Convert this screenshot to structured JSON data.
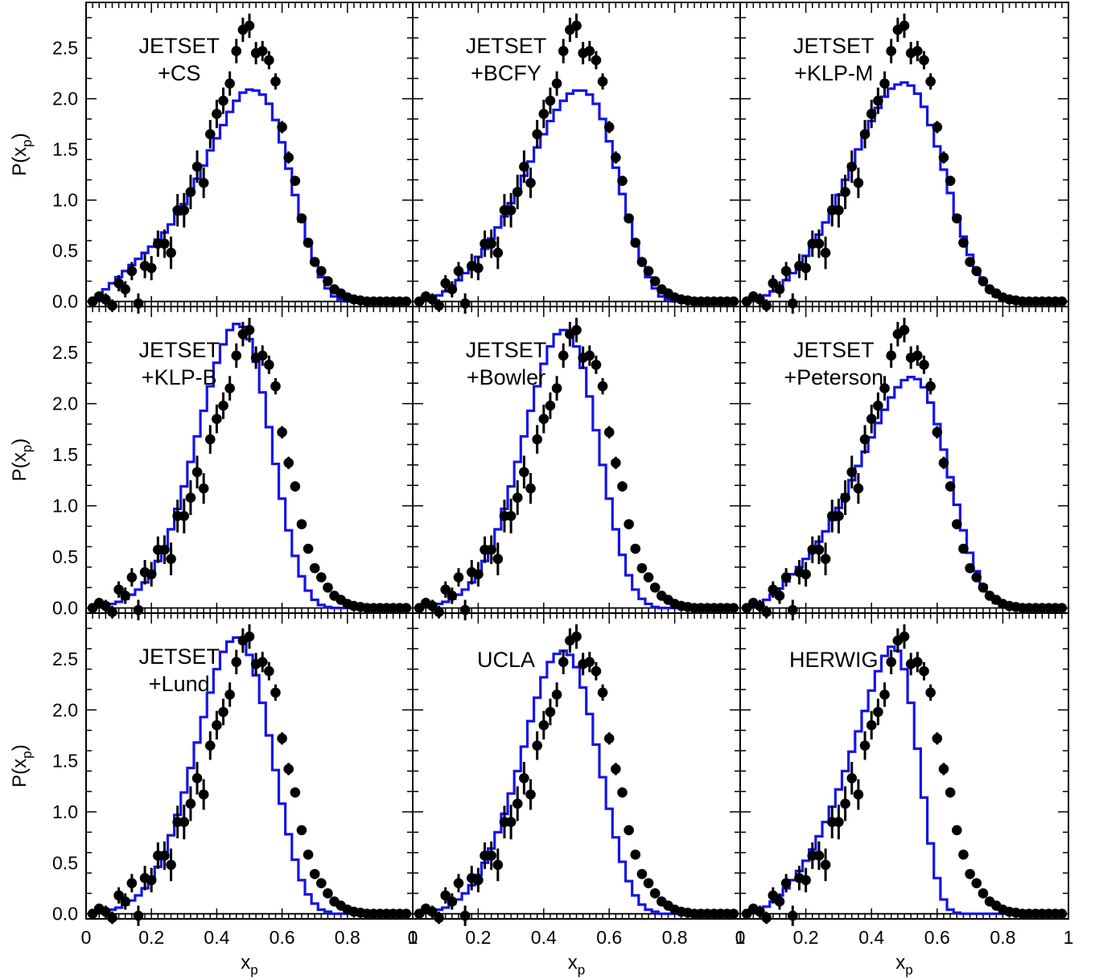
{
  "chart_data": {
    "type": "scatter",
    "layout": "3x3 grid of panels sharing axes",
    "xlabel": "x",
    "xlabel_subscript": "p",
    "ylabel": "P(x",
    "ylabel_subscript": "p",
    "ylabel_close": ")",
    "xlim": [
      0,
      1
    ],
    "ylim": [
      -0.05,
      2.95
    ],
    "xticks": [
      "0",
      "0.2",
      "0.4",
      "0.6",
      "0.8",
      "1"
    ],
    "yticks": [
      "0.0",
      "0.5",
      "1.0",
      "1.5",
      "2.0",
      "2.5"
    ],
    "colors": {
      "data_points": "#000000",
      "model_histogram": "#1414e6"
    },
    "data_points": {
      "x": [
        0.02,
        0.04,
        0.06,
        0.08,
        0.1,
        0.12,
        0.14,
        0.16,
        0.18,
        0.2,
        0.22,
        0.24,
        0.26,
        0.28,
        0.3,
        0.32,
        0.34,
        0.36,
        0.38,
        0.4,
        0.42,
        0.44,
        0.46,
        0.48,
        0.5,
        0.52,
        0.54,
        0.56,
        0.58,
        0.6,
        0.62,
        0.64,
        0.66,
        0.68,
        0.7,
        0.72,
        0.74,
        0.76,
        0.78,
        0.8,
        0.82,
        0.84,
        0.86,
        0.88,
        0.9,
        0.92,
        0.94,
        0.96,
        0.98
      ],
      "y": [
        0.0,
        0.05,
        0.02,
        -0.04,
        0.18,
        0.12,
        0.3,
        -0.02,
        0.35,
        0.33,
        0.57,
        0.57,
        0.48,
        0.9,
        0.9,
        1.08,
        1.33,
        1.17,
        1.65,
        1.85,
        1.98,
        2.15,
        2.47,
        2.68,
        2.72,
        2.45,
        2.47,
        2.38,
        2.17,
        1.72,
        1.42,
        1.19,
        0.82,
        0.58,
        0.39,
        0.3,
        0.2,
        0.12,
        0.08,
        0.04,
        0.02,
        0.01,
        0.0,
        0.0,
        0.0,
        0.0,
        0.0,
        0.0,
        0.0
      ],
      "yerr": [
        0.04,
        0.05,
        0.06,
        0.06,
        0.08,
        0.08,
        0.09,
        0.1,
        0.12,
        0.12,
        0.13,
        0.14,
        0.16,
        0.16,
        0.17,
        0.17,
        0.16,
        0.15,
        0.14,
        0.14,
        0.13,
        0.12,
        0.12,
        0.12,
        0.12,
        0.11,
        0.1,
        0.09,
        0.08,
        0.06,
        0.06,
        0.05,
        0.04,
        0.03,
        0.03,
        0.03,
        0.02,
        0.02,
        0.02,
        0.02,
        0.02,
        0.02,
        0.02,
        0.02,
        0.02,
        0.02,
        0.02,
        0.02,
        0.02
      ]
    },
    "panels": [
      {
        "label_lines": [
          "JETSET",
          "+CS"
        ],
        "histogram": [
          0.02,
          0.07,
          0.12,
          0.18,
          0.24,
          0.3,
          0.36,
          0.42,
          0.48,
          0.54,
          0.61,
          0.68,
          0.76,
          0.86,
          0.96,
          1.08,
          1.21,
          1.34,
          1.49,
          1.61,
          1.74,
          1.87,
          1.98,
          2.06,
          2.09,
          2.08,
          2.04,
          1.95,
          1.79,
          1.57,
          1.31,
          1.05,
          0.79,
          0.58,
          0.39,
          0.24,
          0.13,
          0.05,
          0.02,
          0.0,
          0.0,
          0.0,
          0.0,
          0.0,
          0.0,
          0.0,
          0.0,
          0.0,
          0.0
        ]
      },
      {
        "label_lines": [
          "JETSET",
          "+BCFY"
        ],
        "histogram": [
          0.0,
          0.01,
          0.03,
          0.06,
          0.1,
          0.15,
          0.21,
          0.28,
          0.36,
          0.44,
          0.52,
          0.62,
          0.73,
          0.84,
          0.97,
          1.1,
          1.24,
          1.38,
          1.52,
          1.65,
          1.78,
          1.89,
          1.98,
          2.05,
          2.08,
          2.08,
          2.04,
          1.95,
          1.8,
          1.58,
          1.32,
          1.06,
          0.8,
          0.58,
          0.39,
          0.24,
          0.13,
          0.05,
          0.02,
          0.0,
          0.0,
          0.0,
          0.0,
          0.0,
          0.0,
          0.0,
          0.0,
          0.0,
          0.0
        ]
      },
      {
        "label_lines": [
          "JETSET",
          "+KLP-M"
        ],
        "histogram": [
          0.0,
          0.01,
          0.03,
          0.06,
          0.1,
          0.15,
          0.21,
          0.28,
          0.36,
          0.45,
          0.55,
          0.66,
          0.78,
          0.91,
          1.05,
          1.2,
          1.35,
          1.5,
          1.64,
          1.78,
          1.91,
          2.02,
          2.1,
          2.14,
          2.16,
          2.13,
          2.05,
          1.92,
          1.74,
          1.53,
          1.3,
          1.07,
          0.84,
          0.64,
          0.46,
          0.32,
          0.2,
          0.11,
          0.05,
          0.02,
          0.0,
          0.0,
          0.0,
          0.0,
          0.0,
          0.0,
          0.0,
          0.0,
          0.0
        ]
      },
      {
        "label_lines": [
          "JETSET",
          "+KLP-B"
        ],
        "histogram": [
          0.0,
          0.01,
          0.02,
          0.04,
          0.06,
          0.09,
          0.13,
          0.18,
          0.25,
          0.34,
          0.46,
          0.6,
          0.77,
          0.97,
          1.19,
          1.43,
          1.68,
          1.93,
          2.17,
          2.4,
          2.58,
          2.72,
          2.78,
          2.75,
          2.63,
          2.41,
          2.11,
          1.77,
          1.41,
          1.07,
          0.76,
          0.51,
          0.31,
          0.17,
          0.08,
          0.03,
          0.01,
          0.0,
          0.0,
          0.0,
          0.0,
          0.0,
          0.0,
          0.0,
          0.0,
          0.0,
          0.0,
          0.0,
          0.0
        ]
      },
      {
        "label_lines": [
          "JETSET",
          "+Bowler"
        ],
        "histogram": [
          0.0,
          0.01,
          0.02,
          0.04,
          0.06,
          0.09,
          0.13,
          0.18,
          0.25,
          0.34,
          0.46,
          0.6,
          0.77,
          0.97,
          1.19,
          1.43,
          1.68,
          1.93,
          2.17,
          2.39,
          2.56,
          2.68,
          2.72,
          2.68,
          2.56,
          2.35,
          2.07,
          1.74,
          1.4,
          1.07,
          0.77,
          0.52,
          0.32,
          0.18,
          0.09,
          0.04,
          0.01,
          0.0,
          0.0,
          0.0,
          0.0,
          0.0,
          0.0,
          0.0,
          0.0,
          0.0,
          0.0,
          0.0,
          0.0
        ]
      },
      {
        "label_lines": [
          "JETSET",
          "+Peterson"
        ],
        "histogram": [
          0.0,
          0.01,
          0.04,
          0.08,
          0.13,
          0.19,
          0.26,
          0.33,
          0.4,
          0.48,
          0.56,
          0.65,
          0.75,
          0.86,
          0.98,
          1.11,
          1.25,
          1.39,
          1.53,
          1.67,
          1.81,
          1.94,
          2.06,
          2.16,
          2.23,
          2.26,
          2.24,
          2.16,
          2.01,
          1.8,
          1.55,
          1.28,
          1.01,
          0.76,
          0.54,
          0.36,
          0.22,
          0.12,
          0.05,
          0.02,
          0.0,
          0.0,
          0.0,
          0.0,
          0.0,
          0.0,
          0.0,
          0.0,
          0.0
        ]
      },
      {
        "label_lines": [
          "JETSET",
          "+Lund"
        ],
        "histogram": [
          0.0,
          0.01,
          0.02,
          0.04,
          0.06,
          0.09,
          0.13,
          0.18,
          0.25,
          0.34,
          0.46,
          0.6,
          0.77,
          0.97,
          1.19,
          1.43,
          1.68,
          1.93,
          2.17,
          2.4,
          2.57,
          2.67,
          2.71,
          2.66,
          2.54,
          2.34,
          2.07,
          1.75,
          1.41,
          1.08,
          0.78,
          0.53,
          0.33,
          0.19,
          0.1,
          0.04,
          0.02,
          0.0,
          0.0,
          0.0,
          0.0,
          0.0,
          0.0,
          0.0,
          0.0,
          0.0,
          0.0,
          0.0,
          0.0
        ]
      },
      {
        "label_lines": [
          "UCLA"
        ],
        "histogram": [
          0.0,
          0.01,
          0.02,
          0.04,
          0.06,
          0.1,
          0.14,
          0.2,
          0.28,
          0.38,
          0.5,
          0.64,
          0.8,
          0.98,
          1.18,
          1.4,
          1.64,
          1.89,
          2.12,
          2.32,
          2.47,
          2.55,
          2.58,
          2.54,
          2.42,
          2.22,
          1.96,
          1.66,
          1.34,
          1.03,
          0.75,
          0.51,
          0.32,
          0.18,
          0.09,
          0.04,
          0.02,
          0.0,
          0.0,
          0.0,
          0.0,
          0.0,
          0.0,
          0.0,
          0.0,
          0.0,
          0.0,
          0.0,
          0.0
        ]
      },
      {
        "label_lines": [
          "HERWIG"
        ],
        "histogram": [
          0.0,
          0.01,
          0.03,
          0.07,
          0.12,
          0.18,
          0.25,
          0.33,
          0.42,
          0.52,
          0.63,
          0.76,
          0.9,
          1.05,
          1.22,
          1.4,
          1.59,
          1.79,
          1.99,
          2.19,
          2.38,
          2.53,
          2.62,
          2.58,
          2.4,
          2.07,
          1.62,
          1.14,
          0.69,
          0.35,
          0.14,
          0.04,
          0.01,
          0.0,
          0.0,
          0.0,
          0.0,
          0.0,
          0.0,
          0.0,
          0.0,
          0.0,
          0.0,
          0.0,
          0.0,
          0.0,
          0.0,
          0.0,
          0.0
        ]
      }
    ]
  }
}
